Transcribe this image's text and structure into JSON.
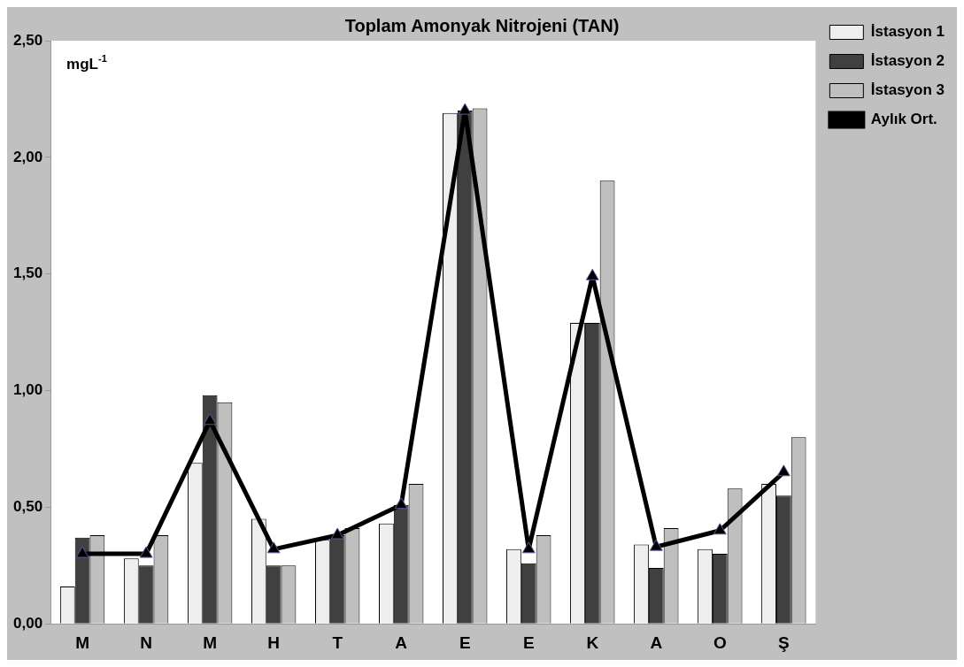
{
  "chart_data": {
    "type": "bar",
    "title": "Toplam Amonyak Nitrojeni (TAN)",
    "ylabel": "mgL$^{-1}$",
    "categories": [
      "M",
      "N",
      "M",
      "H",
      "T",
      "A",
      "E",
      "E",
      "K",
      "A",
      "O",
      "Ş"
    ],
    "series": [
      {
        "name": "İstasyon 1",
        "color": "#eeeeee",
        "values": [
          0.16,
          0.28,
          0.69,
          0.45,
          0.36,
          0.43,
          2.19,
          0.32,
          1.29,
          0.34,
          0.32,
          0.6
        ]
      },
      {
        "name": "İstasyon 2",
        "color": "#404040",
        "values": [
          0.37,
          0.25,
          0.98,
          0.25,
          0.38,
          0.51,
          2.2,
          0.26,
          1.29,
          0.24,
          0.3,
          0.55
        ]
      },
      {
        "name": "İstasyon 3",
        "color": "#bfbfbf",
        "values": [
          0.38,
          0.38,
          0.95,
          0.25,
          0.41,
          0.6,
          2.21,
          0.38,
          1.9,
          0.41,
          0.58,
          0.8
        ]
      },
      {
        "name": "Aylık Ort.",
        "type": "line",
        "color": "#000000",
        "values": [
          0.3,
          0.3,
          0.87,
          0.32,
          0.38,
          0.51,
          2.2,
          0.32,
          1.49,
          0.33,
          0.4,
          0.65
        ]
      }
    ],
    "ylim": [
      0,
      2.5
    ],
    "yticks": [
      {
        "value": 0,
        "label": "0,00"
      },
      {
        "value": 0.5,
        "label": "0,50"
      },
      {
        "value": 1,
        "label": "1,00"
      },
      {
        "value": 1.5,
        "label": "1,50"
      },
      {
        "value": 2,
        "label": "2,00"
      },
      {
        "value": 2.5,
        "label": "2,50"
      }
    ],
    "grid": false,
    "legend": "top right",
    "marker": "triangle",
    "line_style": "solid"
  }
}
